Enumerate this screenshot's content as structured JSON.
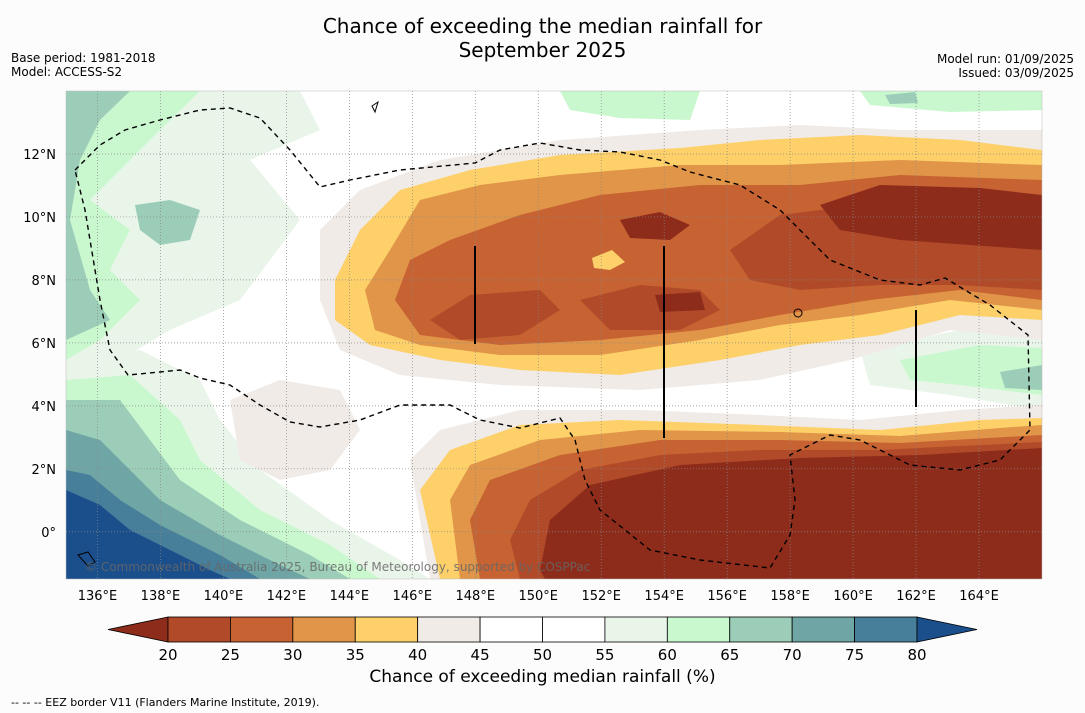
{
  "header": {
    "title_line1": "Chance of exceeding the median rainfall for",
    "title_line2": "September 2025",
    "base_period": "Base period: 1981-2018",
    "model": "Model: ACCESS-S2",
    "model_run": "Model run: 01/09/2025",
    "issued": "Issued: 03/09/2025"
  },
  "map": {
    "lat_labels": [
      "12°N",
      "10°N",
      "8°N",
      "6°N",
      "4°N",
      "2°N",
      "0°"
    ],
    "lat_values": [
      12,
      10,
      8,
      6,
      4,
      2,
      0
    ],
    "lon_labels": [
      "136°E",
      "138°E",
      "140°E",
      "142°E",
      "144°E",
      "146°E",
      "148°E",
      "150°E",
      "152°E",
      "154°E",
      "156°E",
      "158°E",
      "160°E",
      "162°E",
      "164°E"
    ],
    "lon_values": [
      136,
      138,
      140,
      142,
      144,
      146,
      148,
      150,
      152,
      154,
      156,
      158,
      160,
      162,
      164
    ],
    "lon_range": [
      135,
      166
    ],
    "lat_range": [
      -1.5,
      14
    ],
    "copyright": "© Commonwealth of Australia 2025, Bureau of Meteorology, supported by COSPPac"
  },
  "colorbar": {
    "ticks": [
      "20",
      "25",
      "30",
      "35",
      "40",
      "45",
      "50",
      "55",
      "60",
      "65",
      "70",
      "75",
      "80"
    ],
    "colors": [
      "#8e2c1c",
      "#b04a28",
      "#c76232",
      "#e09548",
      "#fdd06a",
      "#f0ebe6",
      "#ffffff",
      "#ffffff",
      "#eaf5ea",
      "#c9f7ce",
      "#9ccdb8",
      "#6fa6a5",
      "#477e9a",
      "#1b4f8c"
    ],
    "label": "Chance of exceeding median rainfall (%)"
  },
  "footnote": "-- -- -- EEZ border V11 (Flanders Marine Institute, 2019)."
}
